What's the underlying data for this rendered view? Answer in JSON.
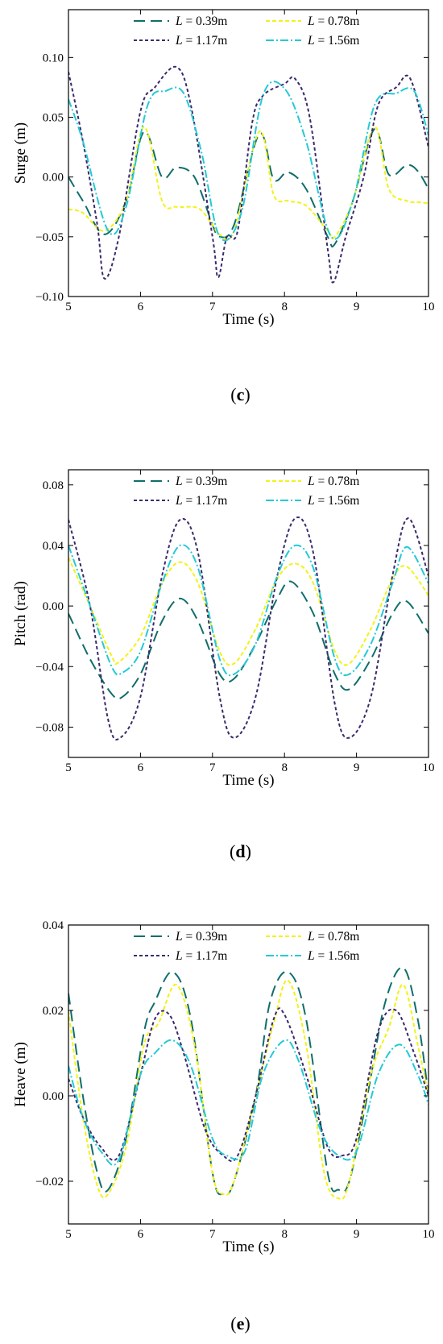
{
  "legend_entries": [
    {
      "var": "L",
      "text": " = 0.39m",
      "color": "#0f6e6b",
      "dash": "14,7"
    },
    {
      "var": "L",
      "text": " = 0.78m",
      "color": "#f2f218",
      "dash": "5,3"
    },
    {
      "var": "L",
      "text": " = 1.17m",
      "color": "#3b2a6b",
      "dash": "4,3"
    },
    {
      "var": "L",
      "text": " = 1.56m",
      "color": "#24c9d6",
      "dash": "10,3,2,3"
    }
  ],
  "chart_data": [
    {
      "type": "line",
      "panel_label": "c",
      "xlabel": "Time (s)",
      "ylabel": "Surge (m)",
      "xlim": [
        5,
        10
      ],
      "ylim": [
        -0.1,
        0.14
      ],
      "xticks": [
        "5",
        "6",
        "7",
        "8",
        "9",
        "10"
      ],
      "yticks": [
        {
          "v": -0.1,
          "label": "−0.10"
        },
        {
          "v": -0.05,
          "label": "−0.05"
        },
        {
          "v": 0.0,
          "label": "0.00"
        },
        {
          "v": 0.05,
          "label": "0.05"
        },
        {
          "v": 0.1,
          "label": "0.10"
        }
      ],
      "series": [
        {
          "name": "L = 0.39m",
          "x": [
            5.0,
            5.2,
            5.5,
            5.8,
            6.05,
            6.3,
            6.5,
            6.75,
            7.0,
            7.1,
            7.3,
            7.65,
            7.85,
            8.05,
            8.3,
            8.6,
            8.7,
            8.95,
            9.25,
            9.45,
            9.7,
            9.85,
            10.0
          ],
          "y": [
            0.0,
            -0.02,
            -0.048,
            -0.02,
            0.038,
            0.0,
            0.008,
            0.0,
            -0.04,
            -0.05,
            -0.04,
            0.036,
            -0.002,
            0.004,
            -0.01,
            -0.05,
            -0.056,
            -0.02,
            0.04,
            0.002,
            0.01,
            0.005,
            -0.01
          ]
        },
        {
          "name": "L = 0.78m",
          "x": [
            5.0,
            5.2,
            5.5,
            5.8,
            6.05,
            6.3,
            6.5,
            6.8,
            7.0,
            7.1,
            7.3,
            7.65,
            7.85,
            8.05,
            8.3,
            8.6,
            8.7,
            8.95,
            9.25,
            9.45,
            9.7,
            9.85,
            10.0
          ],
          "y": [
            -0.027,
            -0.03,
            -0.045,
            -0.02,
            0.042,
            -0.02,
            -0.025,
            -0.026,
            -0.04,
            -0.048,
            -0.045,
            0.038,
            -0.015,
            -0.02,
            -0.024,
            -0.045,
            -0.05,
            -0.02,
            0.042,
            -0.01,
            -0.02,
            -0.021,
            -0.022
          ]
        },
        {
          "name": "L = 1.17m",
          "x": [
            5.0,
            5.2,
            5.4,
            5.5,
            5.7,
            6.0,
            6.2,
            6.5,
            6.7,
            7.0,
            7.08,
            7.2,
            7.35,
            7.55,
            7.7,
            8.0,
            8.15,
            8.35,
            8.6,
            8.68,
            8.85,
            9.1,
            9.3,
            9.55,
            9.75,
            10.0
          ],
          "y": [
            0.088,
            0.03,
            -0.04,
            -0.085,
            -0.05,
            0.055,
            0.075,
            0.092,
            0.06,
            -0.05,
            -0.084,
            -0.05,
            -0.045,
            0.045,
            0.068,
            0.078,
            0.082,
            0.05,
            -0.06,
            -0.088,
            -0.05,
            0.0,
            0.06,
            0.075,
            0.082,
            0.025
          ]
        },
        {
          "name": "L = 1.56m",
          "x": [
            5.0,
            5.2,
            5.55,
            5.8,
            6.1,
            6.35,
            6.6,
            6.85,
            7.1,
            7.4,
            7.7,
            8.0,
            8.3,
            8.65,
            8.95,
            9.25,
            9.55,
            9.8,
            10.0
          ],
          "y": [
            0.065,
            0.03,
            -0.045,
            -0.025,
            0.06,
            0.072,
            0.07,
            0.02,
            -0.05,
            -0.03,
            0.068,
            0.074,
            0.03,
            -0.05,
            -0.02,
            0.06,
            0.07,
            0.072,
            0.035
          ]
        }
      ]
    },
    {
      "type": "line",
      "panel_label": "d",
      "xlabel": "Time (s)",
      "ylabel": "Pitch (rad)",
      "xlim": [
        5,
        10
      ],
      "ylim": [
        -0.1,
        0.09
      ],
      "xticks": [
        "5",
        "6",
        "7",
        "8",
        "9",
        "10"
      ],
      "yticks": [
        {
          "v": -0.08,
          "label": "−0.08"
        },
        {
          "v": -0.04,
          "label": "−0.04"
        },
        {
          "v": 0.0,
          "label": "0.00"
        },
        {
          "v": 0.04,
          "label": "0.04"
        },
        {
          "v": 0.08,
          "label": "0.08"
        }
      ],
      "series": [
        {
          "name": "L = 0.39m",
          "x": [
            5.0,
            5.3,
            5.6,
            5.75,
            6.0,
            6.3,
            6.55,
            6.8,
            7.1,
            7.3,
            7.6,
            7.9,
            8.1,
            8.4,
            8.7,
            8.9,
            9.2,
            9.5,
            9.7,
            10.0
          ],
          "y": [
            -0.005,
            -0.035,
            -0.058,
            -0.06,
            -0.045,
            -0.01,
            0.005,
            -0.01,
            -0.045,
            -0.048,
            -0.025,
            0.005,
            0.016,
            -0.005,
            -0.045,
            -0.055,
            -0.035,
            -0.005,
            0.003,
            -0.018
          ]
        },
        {
          "name": "L = 0.78m",
          "x": [
            5.0,
            5.3,
            5.6,
            5.7,
            6.0,
            6.3,
            6.55,
            6.8,
            7.1,
            7.3,
            7.6,
            7.9,
            8.15,
            8.4,
            8.7,
            8.9,
            9.2,
            9.5,
            9.7,
            10.0
          ],
          "y": [
            0.032,
            0.0,
            -0.033,
            -0.037,
            -0.02,
            0.015,
            0.029,
            0.015,
            -0.03,
            -0.038,
            -0.015,
            0.018,
            0.028,
            0.015,
            -0.03,
            -0.038,
            -0.015,
            0.018,
            0.026,
            0.007
          ]
        },
        {
          "name": "L = 1.17m",
          "x": [
            5.0,
            5.3,
            5.55,
            5.72,
            6.0,
            6.3,
            6.55,
            6.8,
            7.1,
            7.3,
            7.6,
            7.9,
            8.15,
            8.4,
            8.7,
            8.9,
            9.2,
            9.5,
            9.72,
            10.0
          ],
          "y": [
            0.057,
            0.0,
            -0.075,
            -0.087,
            -0.06,
            0.02,
            0.057,
            0.035,
            -0.06,
            -0.087,
            -0.06,
            0.02,
            0.058,
            0.035,
            -0.065,
            -0.087,
            -0.06,
            0.02,
            0.058,
            0.02
          ]
        },
        {
          "name": "L = 1.56m",
          "x": [
            5.0,
            5.3,
            5.6,
            5.75,
            6.0,
            6.3,
            6.55,
            6.8,
            7.1,
            7.3,
            7.6,
            7.9,
            8.15,
            8.4,
            8.7,
            8.9,
            9.2,
            9.5,
            9.7,
            10.0
          ],
          "y": [
            0.04,
            0.0,
            -0.04,
            -0.044,
            -0.03,
            0.015,
            0.04,
            0.025,
            -0.035,
            -0.045,
            -0.025,
            0.02,
            0.04,
            0.025,
            -0.035,
            -0.045,
            -0.025,
            0.015,
            0.039,
            0.015
          ]
        }
      ]
    },
    {
      "type": "line",
      "panel_label": "e",
      "xlabel": "Time (s)",
      "ylabel": "Heave (m)",
      "xlim": [
        5,
        10
      ],
      "ylim": [
        -0.03,
        0.04
      ],
      "xticks": [
        "5",
        "6",
        "7",
        "8",
        "9",
        "10"
      ],
      "yticks": [
        {
          "v": -0.02,
          "label": "−0.02"
        },
        {
          "v": 0.0,
          "label": "0.00"
        },
        {
          "v": 0.02,
          "label": "0.02"
        },
        {
          "v": 0.04,
          "label": "0.04"
        }
      ],
      "series": [
        {
          "name": "L = 0.39m",
          "x": [
            5.0,
            5.2,
            5.4,
            5.55,
            5.8,
            6.05,
            6.2,
            6.45,
            6.7,
            7.0,
            7.15,
            7.3,
            7.6,
            7.8,
            8.05,
            8.3,
            8.6,
            8.75,
            8.9,
            9.15,
            9.4,
            9.65,
            9.85,
            10.0
          ],
          "y": [
            0.024,
            0.0,
            -0.018,
            -0.022,
            -0.01,
            0.015,
            0.022,
            0.029,
            0.018,
            -0.018,
            -0.023,
            -0.02,
            0.0,
            0.022,
            0.029,
            0.018,
            -0.018,
            -0.022,
            -0.02,
            0.0,
            0.022,
            0.03,
            0.018,
            0.0
          ]
        },
        {
          "name": "L = 0.78m",
          "x": [
            5.0,
            5.2,
            5.4,
            5.55,
            5.8,
            6.05,
            6.25,
            6.5,
            6.75,
            7.0,
            7.15,
            7.3,
            7.6,
            7.85,
            8.05,
            8.3,
            8.55,
            8.75,
            8.9,
            9.2,
            9.45,
            9.65,
            9.85,
            10.0
          ],
          "y": [
            0.02,
            -0.005,
            -0.021,
            -0.023,
            -0.012,
            0.012,
            0.017,
            0.026,
            0.012,
            -0.018,
            -0.023,
            -0.02,
            0.0,
            0.017,
            0.027,
            0.012,
            -0.018,
            -0.024,
            -0.02,
            0.005,
            0.016,
            0.026,
            0.012,
            0.0
          ]
        },
        {
          "name": "L = 1.17m",
          "x": [
            5.0,
            5.2,
            5.45,
            5.7,
            6.0,
            6.2,
            6.4,
            6.6,
            6.9,
            7.15,
            7.35,
            7.6,
            7.85,
            8.0,
            8.3,
            8.6,
            8.8,
            9.0,
            9.3,
            9.55,
            9.8,
            10.0
          ],
          "y": [
            0.004,
            -0.005,
            -0.012,
            -0.014,
            0.005,
            0.018,
            0.019,
            0.01,
            -0.008,
            -0.014,
            -0.014,
            0.0,
            0.018,
            0.019,
            0.005,
            -0.012,
            -0.014,
            -0.01,
            0.015,
            0.02,
            0.01,
            0.0
          ]
        },
        {
          "name": "L = 1.56m",
          "x": [
            5.0,
            5.2,
            5.45,
            5.7,
            6.0,
            6.2,
            6.45,
            6.7,
            7.0,
            7.2,
            7.45,
            7.7,
            8.0,
            8.2,
            8.5,
            8.75,
            9.0,
            9.3,
            9.6,
            9.85,
            10.0
          ],
          "y": [
            0.007,
            -0.005,
            -0.013,
            -0.015,
            0.005,
            0.01,
            0.013,
            0.007,
            -0.01,
            -0.014,
            -0.013,
            0.005,
            0.013,
            0.008,
            -0.008,
            -0.014,
            -0.013,
            0.005,
            0.012,
            0.005,
            -0.002
          ]
        }
      ]
    }
  ]
}
